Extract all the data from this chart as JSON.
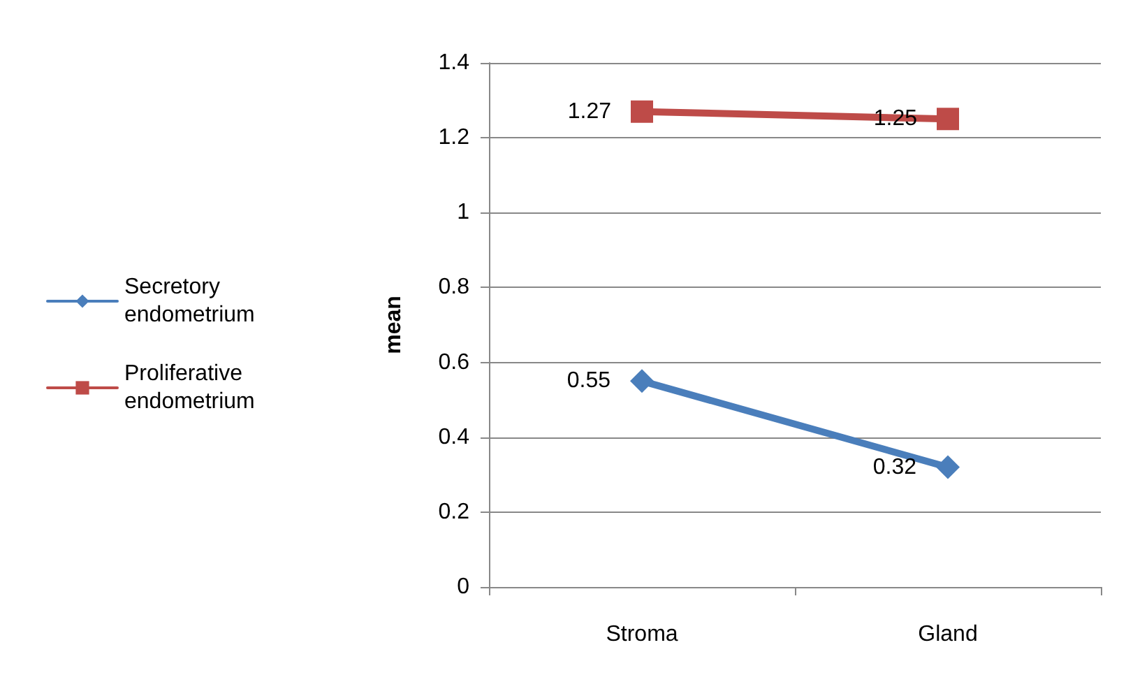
{
  "chart_data": {
    "type": "line",
    "ylabel": "mean",
    "categories": [
      "Stroma",
      "Gland"
    ],
    "series": [
      {
        "name": "Secretory endometrium",
        "color": "#4a7ebb",
        "values": [
          0.55,
          0.32
        ],
        "marker": "diamond"
      },
      {
        "name": "Proliferative endometrium",
        "color": "#be4b48",
        "values": [
          1.27,
          1.25
        ],
        "marker": "square"
      }
    ],
    "ylim": [
      0,
      1.4
    ],
    "yticks": [
      0,
      0.2,
      0.4,
      0.6,
      0.8,
      1,
      1.2,
      1.4
    ],
    "grid": "y",
    "legend": "left",
    "data_labels": true,
    "line_style": "solid"
  }
}
